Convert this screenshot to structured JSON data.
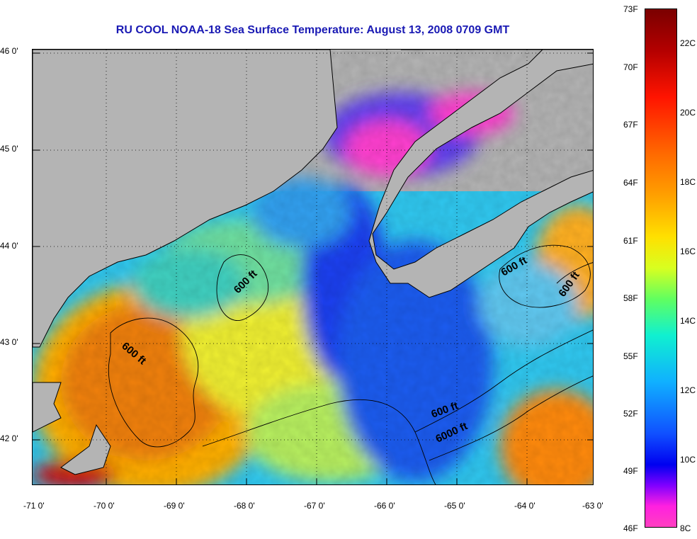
{
  "title": "RU COOL  NOAA-18  Sea Surface Temperature:  August 13, 2008 0709 GMT",
  "lat_labels": [
    "46 0'",
    "45 0'",
    "44 0'",
    "43 0'",
    "42 0'"
  ],
  "lon_labels": [
    "-71 0'",
    "-70 0'",
    "-69 0'",
    "-68 0'",
    "-67 0'",
    "-66 0'",
    "-65 0'",
    "-64 0'",
    "-63 0'"
  ],
  "contour_labels": [
    "600 ft",
    "600 ft",
    "600 ft",
    "600 ft",
    "600 ft",
    "6000 ft"
  ],
  "colorbar": {
    "fahrenheit": [
      "73F",
      "70F",
      "67F",
      "64F",
      "61F",
      "58F",
      "55F",
      "52F",
      "49F",
      "46F"
    ],
    "celsius": [
      "22C",
      "20C",
      "18C",
      "16C",
      "14C",
      "12C",
      "10C",
      "8C"
    ]
  },
  "colors": {
    "title": "#1a1ab4",
    "land": "#b4b4b4"
  }
}
